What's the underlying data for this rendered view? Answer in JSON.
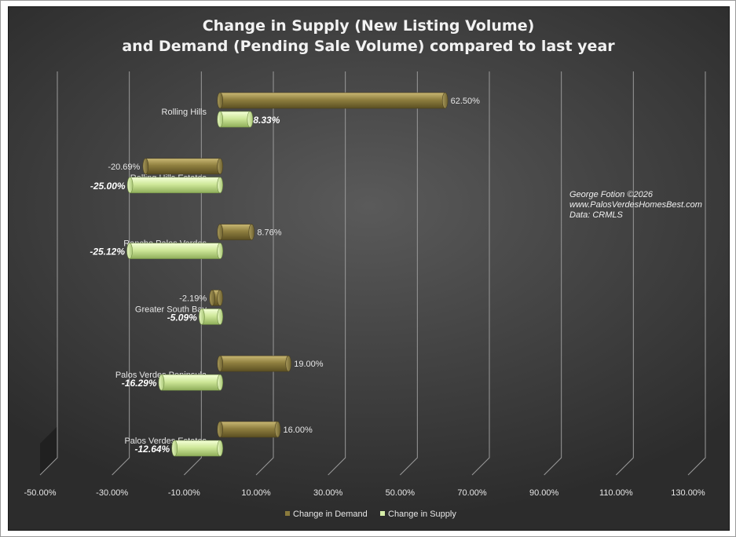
{
  "chart_data": {
    "type": "bar",
    "orientation": "horizontal",
    "title": [
      "Change in Supply (New Listing Volume)",
      "and Demand (Pending Sale Volume) compared to last year"
    ],
    "categories": [
      "Rolling Hills",
      "Rolling Hills Estates",
      "Rancho Palos Verdes",
      "Greater South Bay",
      "Palos Verdes Peninsula",
      "Palos Verdes Estates"
    ],
    "series": [
      {
        "name": "Change in Demand",
        "values": [
          62.5,
          -20.69,
          8.76,
          -2.19,
          19.0,
          16.0
        ],
        "labels": [
          "62.50%",
          "-20.69%",
          "8.76%",
          "-2.19%",
          "19.00%",
          "16.00%"
        ],
        "color": "#8a7a3c"
      },
      {
        "name": "Change in Supply",
        "values": [
          8.33,
          -25.0,
          -25.12,
          -5.09,
          -16.29,
          -12.64
        ],
        "labels": [
          "8.33%",
          "-25.00%",
          "-25.12%",
          "-5.09%",
          "-16.29%",
          "-12.64%"
        ],
        "color": "#d6eea8"
      }
    ],
    "xlim": [
      -50,
      130
    ],
    "xticks": [
      -50,
      -30,
      -10,
      10,
      30,
      50,
      70,
      90,
      110,
      130
    ],
    "xtick_labels": [
      "-50.00%",
      "-30.00%",
      "-10.00%",
      "10.00%",
      "30.00%",
      "50.00%",
      "70.00%",
      "90.00%",
      "110.00%",
      "130.00%"
    ],
    "grid": true,
    "legend": "bottom",
    "annotation": [
      "George Fotion ©2026",
      "www.PalosVerdesHomesBest.com",
      "Data: CRMLS"
    ]
  }
}
